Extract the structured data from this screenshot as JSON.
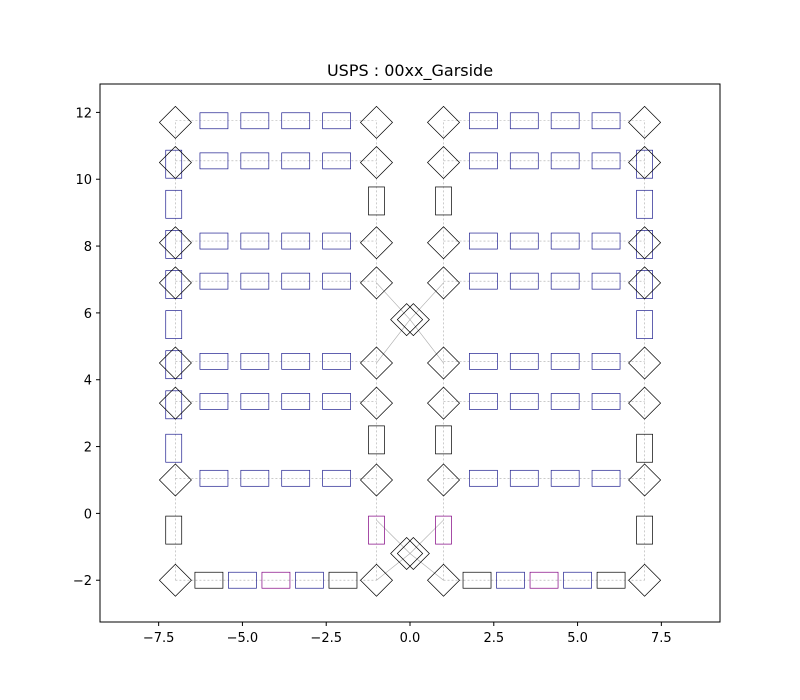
{
  "chart_data": {
    "type": "scatter",
    "title": "USPS : 00xx_Garside",
    "xlabel": "",
    "ylabel": "",
    "xlim": [
      -9.25,
      9.25
    ],
    "ylim": [
      -3.25,
      12.85
    ],
    "xticks": [
      -7.5,
      -5.0,
      -2.5,
      0.0,
      2.5,
      5.0,
      7.5
    ],
    "xtick_labels": [
      "−7.5",
      "−5.0",
      "−2.5",
      "0.0",
      "2.5",
      "5.0",
      "7.5"
    ],
    "yticks": [
      -2,
      0,
      2,
      4,
      6,
      8,
      10,
      12
    ],
    "ytick_labels": [
      "−2",
      "0",
      "2",
      "4",
      "6",
      "8",
      "10",
      "12"
    ],
    "grid": false,
    "legend": "none",
    "colors": {
      "black": "#000000",
      "blue": "#1f1f8f",
      "purple": "#800080",
      "edge": "#aaaaaa"
    },
    "diamonds": [
      [
        -7,
        11.7
      ],
      [
        -1,
        11.7
      ],
      [
        1,
        11.7
      ],
      [
        7,
        11.7
      ],
      [
        -7,
        10.5
      ],
      [
        -1,
        10.5
      ],
      [
        1,
        10.5
      ],
      [
        7,
        10.5
      ],
      [
        -7,
        8.1
      ],
      [
        -1,
        8.1
      ],
      [
        1,
        8.1
      ],
      [
        7,
        8.1
      ],
      [
        -7,
        6.9
      ],
      [
        -1,
        6.9
      ],
      [
        1,
        6.9
      ],
      [
        7,
        6.9
      ],
      [
        -0.1,
        5.8
      ],
      [
        0.1,
        5.8
      ],
      [
        -7,
        4.5
      ],
      [
        -1,
        4.5
      ],
      [
        1,
        4.5
      ],
      [
        7,
        4.5
      ],
      [
        -7,
        3.3
      ],
      [
        -1,
        3.3
      ],
      [
        1,
        3.3
      ],
      [
        7,
        3.3
      ],
      [
        -7,
        1.0
      ],
      [
        -1,
        1.0
      ],
      [
        1,
        1.0
      ],
      [
        7,
        1.0
      ],
      [
        -0.1,
        -1.2
      ],
      [
        0.1,
        -1.2
      ],
      [
        -7,
        -2.0
      ],
      [
        -1,
        -2.0
      ],
      [
        1,
        -2.0
      ],
      [
        7,
        -2.0
      ]
    ],
    "h_rows": [
      {
        "y": 11.75,
        "left": "blue",
        "right": "blue"
      },
      {
        "y": 10.55,
        "left": "blue",
        "right": "blue"
      },
      {
        "y": 8.15,
        "left": "blue",
        "right": "blue"
      },
      {
        "y": 6.95,
        "left": "blue",
        "right": "blue"
      },
      {
        "y": 4.55,
        "left": "blue",
        "right": "blue"
      },
      {
        "y": 3.35,
        "left": "blue",
        "right": "blue"
      },
      {
        "y": 1.05,
        "left": "blue",
        "right": "blue"
      }
    ],
    "h_row_x": [
      -5.85,
      -4.63,
      -3.41,
      -2.19,
      2.19,
      3.41,
      4.63,
      5.85
    ],
    "bottom_row": {
      "y": -2.0,
      "x": [
        -6.0,
        -5.0,
        -4.0,
        -3.0,
        -2.0,
        2.0,
        3.0,
        4.0,
        5.0,
        6.0
      ],
      "colors": [
        "black",
        "blue",
        "purple",
        "blue",
        "black",
        "black",
        "blue",
        "purple",
        "blue",
        "black"
      ]
    },
    "vertical_rects": [
      {
        "x": -7.05,
        "y": 10.45,
        "color": "blue"
      },
      {
        "x": -7.05,
        "y": 9.25,
        "color": "blue"
      },
      {
        "x": -7.05,
        "y": 8.05,
        "color": "blue"
      },
      {
        "x": -7.05,
        "y": 6.85,
        "color": "blue"
      },
      {
        "x": -7.05,
        "y": 5.65,
        "color": "blue"
      },
      {
        "x": -7.05,
        "y": 4.45,
        "color": "blue"
      },
      {
        "x": -7.05,
        "y": 3.25,
        "color": "blue"
      },
      {
        "x": -7.05,
        "y": 1.95,
        "color": "blue"
      },
      {
        "x": -7.05,
        "y": -0.5,
        "color": "black"
      },
      {
        "x": 7.0,
        "y": 10.45,
        "color": "blue"
      },
      {
        "x": 7.0,
        "y": 9.25,
        "color": "blue"
      },
      {
        "x": 7.0,
        "y": 8.05,
        "color": "blue"
      },
      {
        "x": 7.0,
        "y": 6.85,
        "color": "blue"
      },
      {
        "x": 7.0,
        "y": 5.65,
        "color": "blue"
      },
      {
        "x": 7.0,
        "y": 1.95,
        "color": "black"
      },
      {
        "x": 7.0,
        "y": -0.5,
        "color": "black"
      },
      {
        "x": -1.0,
        "y": 9.35,
        "color": "black"
      },
      {
        "x": 1.0,
        "y": 9.35,
        "color": "black"
      },
      {
        "x": -1.0,
        "y": 2.2,
        "color": "black"
      },
      {
        "x": 1.0,
        "y": 2.2,
        "color": "black"
      },
      {
        "x": -1.0,
        "y": -0.5,
        "color": "purple"
      },
      {
        "x": 1.0,
        "y": -0.5,
        "color": "purple"
      }
    ]
  }
}
